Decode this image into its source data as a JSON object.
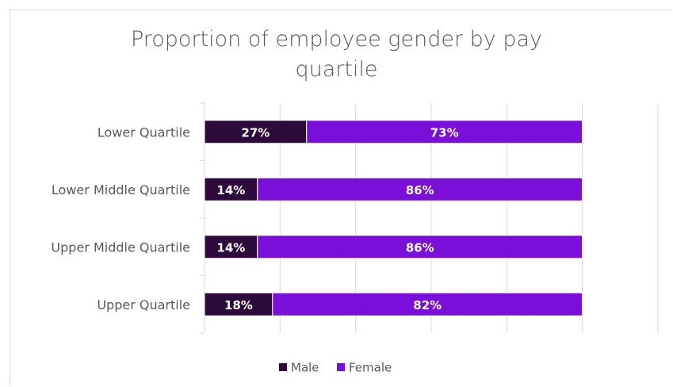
{
  "chart_data": {
    "type": "bar",
    "orientation": "horizontal",
    "stacked": "percent",
    "title_lines": [
      "Proportion of employee gender by pay",
      "quartile"
    ],
    "categories": [
      "Lower Quartile",
      "Lower Middle Quartile",
      "Upper Middle Quartile",
      "Upper Quartile"
    ],
    "series": [
      {
        "name": "Male",
        "values": [
          27,
          14,
          14,
          18
        ],
        "labels": [
          "27%",
          "14%",
          "14%",
          "18%"
        ],
        "color": "#2e0a3c"
      },
      {
        "name": "Female",
        "values": [
          73,
          86,
          86,
          82
        ],
        "labels": [
          "73%",
          "86%",
          "86%",
          "82%"
        ],
        "color": "#7a0fd9"
      }
    ],
    "xlim": [
      0,
      120
    ],
    "grid": true,
    "legend": "bottom",
    "tick_labels_shown": false
  }
}
